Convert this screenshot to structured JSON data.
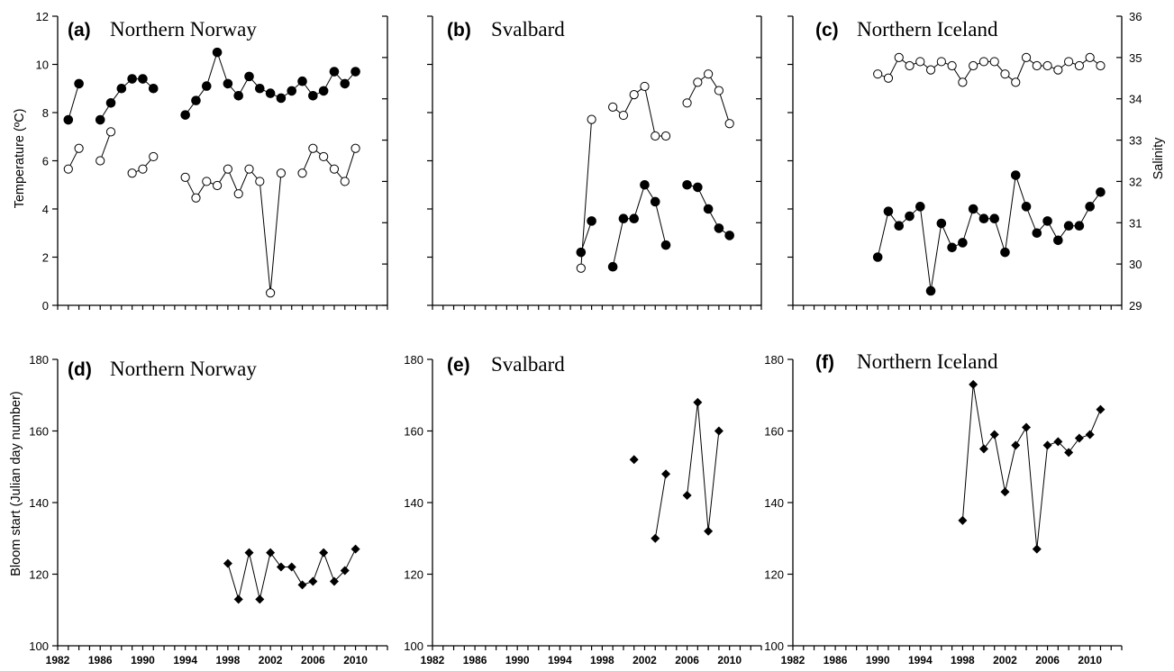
{
  "chart_data": [
    {
      "panel": "a",
      "label": "(a)",
      "title": "Northern Norway",
      "type": "line",
      "xlim": [
        1982,
        2013
      ],
      "xticks": [
        1982,
        1986,
        1990,
        1994,
        1998,
        2002,
        2006,
        2010
      ],
      "ylabel": "Temperature (ºC)",
      "ylim": [
        0,
        12
      ],
      "yticks": [
        0,
        2,
        4,
        6,
        8,
        10,
        12
      ],
      "y2lim": [
        29,
        36
      ],
      "grid": false,
      "series": [
        {
          "marker": "filled-circle",
          "axis": "left",
          "segments": [
            [
              [
                1983,
                7.7
              ],
              [
                1984,
                9.2
              ]
            ],
            [
              [
                1986,
                7.7
              ],
              [
                1987,
                8.4
              ],
              [
                1988,
                9.0
              ],
              [
                1989,
                9.4
              ],
              [
                1990,
                9.4
              ],
              [
                1991,
                9.0
              ]
            ],
            [
              [
                1994,
                7.9
              ],
              [
                1995,
                8.5
              ],
              [
                1996,
                9.1
              ],
              [
                1997,
                10.5
              ],
              [
                1998,
                9.2
              ],
              [
                1999,
                8.7
              ],
              [
                2000,
                9.5
              ],
              [
                2001,
                9.0
              ],
              [
                2002,
                8.8
              ],
              [
                2003,
                8.6
              ],
              [
                2004,
                8.9
              ],
              [
                2005,
                9.3
              ],
              [
                2006,
                8.7
              ],
              [
                2007,
                8.9
              ],
              [
                2008,
                9.7
              ],
              [
                2009,
                9.2
              ],
              [
                2010,
                9.7
              ]
            ]
          ]
        },
        {
          "marker": "open-circle",
          "axis": "right",
          "segments": [
            [
              [
                1983,
                32.3
              ],
              [
                1984,
                32.8
              ]
            ],
            [
              [
                1986,
                32.5
              ],
              [
                1987,
                33.2
              ]
            ],
            [
              [
                1989,
                32.2
              ],
              [
                1990,
                32.3
              ],
              [
                1991,
                32.6
              ]
            ],
            [
              [
                1994,
                32.1
              ],
              [
                1995,
                31.6
              ],
              [
                1996,
                32.0
              ],
              [
                1997,
                31.9
              ],
              [
                1998,
                32.3
              ],
              [
                1999,
                31.7
              ],
              [
                2000,
                32.3
              ],
              [
                2001,
                32.0
              ],
              [
                2002,
                29.3
              ],
              [
                2003,
                32.2
              ]
            ],
            [
              [
                2005,
                32.2
              ],
              [
                2006,
                32.8
              ],
              [
                2007,
                32.6
              ],
              [
                2008,
                32.3
              ],
              [
                2009,
                32.0
              ],
              [
                2010,
                32.8
              ]
            ]
          ]
        }
      ]
    },
    {
      "panel": "b",
      "label": "(b)",
      "title": "Svalbard",
      "type": "line",
      "xlim": [
        1982,
        2013
      ],
      "xticks": [
        1982,
        1986,
        1990,
        1994,
        1998,
        2002,
        2006,
        2010
      ],
      "ylim": [
        0,
        12
      ],
      "y2lim": [
        29,
        36
      ],
      "grid": false,
      "series": [
        {
          "marker": "filled-circle",
          "axis": "left",
          "segments": [
            [
              [
                1996,
                2.2
              ],
              [
                1997,
                3.5
              ]
            ],
            [
              [
                1999,
                1.6
              ],
              [
                2000,
                3.6
              ],
              [
                2001,
                3.6
              ],
              [
                2002,
                5.0
              ],
              [
                2003,
                4.3
              ],
              [
                2004,
                2.5
              ]
            ],
            [
              [
                2006,
                5.0
              ],
              [
                2007,
                4.9
              ],
              [
                2008,
                4.0
              ],
              [
                2009,
                3.2
              ],
              [
                2010,
                2.9
              ]
            ]
          ]
        },
        {
          "marker": "open-circle",
          "axis": "right",
          "segments": [
            [
              [
                1996,
                29.9
              ],
              [
                1997,
                33.5
              ]
            ],
            [
              [
                1999,
                33.8
              ],
              [
                2000,
                33.6
              ],
              [
                2001,
                34.1
              ],
              [
                2002,
                34.3
              ],
              [
                2003,
                33.1
              ],
              [
                2004,
                33.1
              ]
            ],
            [
              [
                2006,
                33.9
              ],
              [
                2007,
                34.4
              ],
              [
                2008,
                34.6
              ],
              [
                2009,
                34.2
              ],
              [
                2010,
                33.4
              ]
            ]
          ]
        }
      ]
    },
    {
      "panel": "c",
      "label": "(c)",
      "title": "Northern Iceland",
      "type": "line",
      "xlim": [
        1982,
        2013
      ],
      "xticks": [
        1982,
        1986,
        1990,
        1994,
        1998,
        2002,
        2006,
        2010
      ],
      "ylim": [
        0,
        12
      ],
      "y2label": "Salinity",
      "y2lim": [
        29,
        36
      ],
      "y2ticks": [
        29,
        30,
        31,
        32,
        33,
        34,
        35,
        36
      ],
      "grid": false,
      "series": [
        {
          "marker": "filled-circle",
          "axis": "left",
          "segments": [
            [
              [
                1990,
                2.0
              ],
              [
                1991,
                3.9
              ],
              [
                1992,
                3.3
              ],
              [
                1993,
                3.7
              ],
              [
                1994,
                4.1
              ],
              [
                1995,
                0.6
              ],
              [
                1996,
                3.4
              ],
              [
                1997,
                2.4
              ],
              [
                1998,
                2.6
              ],
              [
                1999,
                4.0
              ],
              [
                2000,
                3.6
              ],
              [
                2001,
                3.6
              ],
              [
                2002,
                2.2
              ],
              [
                2003,
                5.4
              ],
              [
                2004,
                4.1
              ],
              [
                2005,
                3.0
              ],
              [
                2006,
                3.5
              ],
              [
                2007,
                2.7
              ],
              [
                2008,
                3.3
              ],
              [
                2009,
                3.3
              ],
              [
                2010,
                4.1
              ],
              [
                2011,
                4.7
              ]
            ]
          ]
        },
        {
          "marker": "open-circle",
          "axis": "right",
          "segments": [
            [
              [
                1990,
                34.6
              ],
              [
                1991,
                34.5
              ],
              [
                1992,
                35.0
              ],
              [
                1993,
                34.8
              ],
              [
                1994,
                34.9
              ],
              [
                1995,
                34.7
              ],
              [
                1996,
                34.9
              ],
              [
                1997,
                34.8
              ],
              [
                1998,
                34.4
              ],
              [
                1999,
                34.8
              ],
              [
                2000,
                34.9
              ],
              [
                2001,
                34.9
              ],
              [
                2002,
                34.6
              ],
              [
                2003,
                34.4
              ],
              [
                2004,
                35.0
              ],
              [
                2005,
                34.8
              ],
              [
                2006,
                34.8
              ],
              [
                2007,
                34.7
              ],
              [
                2008,
                34.9
              ],
              [
                2009,
                34.8
              ],
              [
                2010,
                35.0
              ],
              [
                2011,
                34.8
              ]
            ]
          ]
        }
      ]
    },
    {
      "panel": "d",
      "label": "(d)",
      "title": "Northern Norway",
      "type": "line",
      "xlim": [
        1982,
        2013
      ],
      "xticks": [
        1982,
        1986,
        1990,
        1994,
        1998,
        2002,
        2006,
        2010
      ],
      "ylabel": "Bloom start (Julian day number)",
      "ylim": [
        100,
        180
      ],
      "yticks": [
        100,
        120,
        140,
        160,
        180
      ],
      "grid": false,
      "series": [
        {
          "marker": "filled-diamond",
          "segments": [
            [
              [
                1998,
                123
              ],
              [
                1999,
                113
              ],
              [
                2000,
                126
              ],
              [
                2001,
                113
              ],
              [
                2002,
                126
              ],
              [
                2003,
                122
              ],
              [
                2004,
                122
              ],
              [
                2005,
                117
              ],
              [
                2006,
                118
              ],
              [
                2007,
                126
              ],
              [
                2008,
                118
              ],
              [
                2009,
                121
              ],
              [
                2010,
                127
              ]
            ]
          ]
        }
      ]
    },
    {
      "panel": "e",
      "label": "(e)",
      "title": "Svalbard",
      "type": "line",
      "xlim": [
        1982,
        2013
      ],
      "xticks": [
        1982,
        1986,
        1990,
        1994,
        1998,
        2002,
        2006,
        2010
      ],
      "ylim": [
        100,
        180
      ],
      "yticks": [
        100,
        120,
        140,
        160,
        180
      ],
      "grid": false,
      "series": [
        {
          "marker": "filled-diamond",
          "segments": [
            [
              [
                2001,
                152
              ]
            ],
            [
              [
                2003,
                130
              ],
              [
                2004,
                148
              ]
            ],
            [
              [
                2006,
                142
              ],
              [
                2007,
                168
              ],
              [
                2008,
                132
              ],
              [
                2009,
                160
              ]
            ]
          ]
        }
      ]
    },
    {
      "panel": "f",
      "label": "(f)",
      "title": "Northern Iceland",
      "type": "line",
      "xlim": [
        1982,
        2013
      ],
      "xticks": [
        1982,
        1986,
        1990,
        1994,
        1998,
        2002,
        2006,
        2010
      ],
      "ylim": [
        100,
        180
      ],
      "yticks": [
        100,
        120,
        140,
        160,
        180
      ],
      "grid": false,
      "series": [
        {
          "marker": "filled-diamond",
          "segments": [
            [
              [
                1998,
                135
              ],
              [
                1999,
                173
              ],
              [
                2000,
                155
              ],
              [
                2001,
                159
              ],
              [
                2002,
                143
              ],
              [
                2003,
                156
              ],
              [
                2004,
                161
              ],
              [
                2005,
                127
              ],
              [
                2006,
                156
              ],
              [
                2007,
                157
              ],
              [
                2008,
                154
              ],
              [
                2009,
                158
              ],
              [
                2010,
                159
              ],
              [
                2011,
                166
              ]
            ]
          ]
        }
      ]
    }
  ]
}
